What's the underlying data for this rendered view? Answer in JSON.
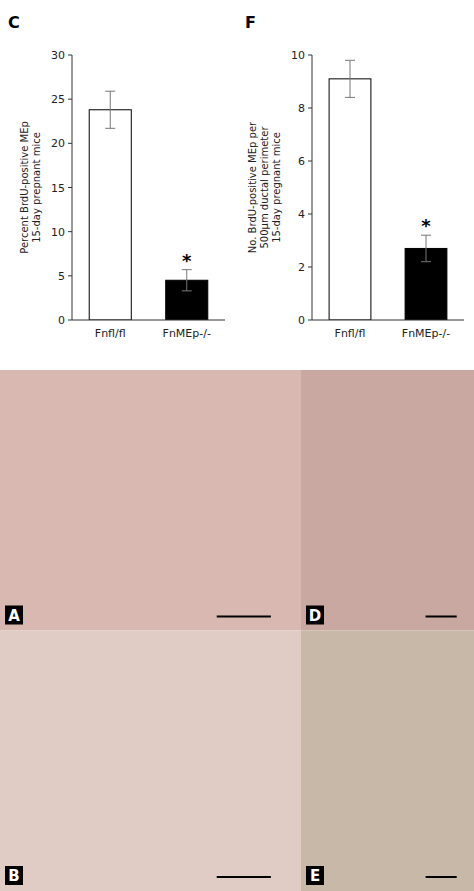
{
  "chart_data": [
    {
      "type": "bar",
      "title": "C",
      "categories": [
        "Fnfl/fl",
        "FnMEp-/-"
      ],
      "values": [
        23.8,
        4.5
      ],
      "errors": [
        2.1,
        1.2
      ],
      "colors": [
        "#ffffff",
        "#000000"
      ],
      "ylabel": "Percent BrdU-positive MEp\n15-day prepnant mice",
      "ylim": [
        0,
        30
      ],
      "yticks": [
        0,
        5,
        10,
        15,
        20,
        25,
        30
      ],
      "annotations": [
        {
          "text": "*",
          "x": "FnMEp-/-"
        }
      ]
    },
    {
      "type": "bar",
      "title": "F",
      "categories": [
        "Fnfl/fl",
        "FnMEp-/-"
      ],
      "values": [
        9.1,
        2.7
      ],
      "errors": [
        0.7,
        0.5
      ],
      "colors": [
        "#ffffff",
        "#000000"
      ],
      "ylabel": "No. BrdU-positive MEp per\n500μm ductal perimeter\n15-day pregnant mice",
      "ylim": [
        0,
        10
      ],
      "yticks": [
        0,
        2,
        4,
        6,
        8,
        10
      ],
      "annotations": [
        {
          "text": "*",
          "x": "FnMEp-/-"
        }
      ]
    },
    {
      "type": "image",
      "title": "A",
      "color": "#d8b8b0"
    },
    {
      "type": "image",
      "title": "B",
      "color": "#e0ccc4"
    },
    {
      "type": "image",
      "title": "D",
      "color": "#c8a8a0"
    },
    {
      "type": "image",
      "title": "E",
      "color": "#c8b8a8"
    }
  ]
}
